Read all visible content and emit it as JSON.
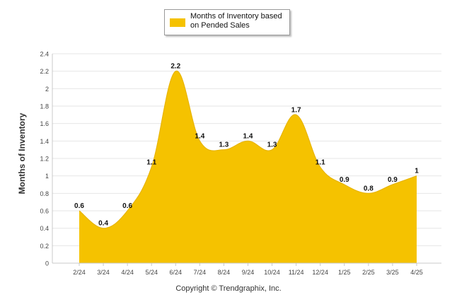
{
  "legend": {
    "label": "Months of Inventory based on Pended Sales"
  },
  "copyright": "Copyright © Trendgraphix, Inc.",
  "chart_data": {
    "type": "area",
    "categories": [
      "2/24",
      "3/24",
      "4/24",
      "5/24",
      "6/24",
      "7/24",
      "8/24",
      "9/24",
      "10/24",
      "11/24",
      "12/24",
      "1/25",
      "2/25",
      "3/25",
      "4/25"
    ],
    "series": [
      {
        "name": "Months of Inventory based on Pended Sales",
        "values": [
          0.6,
          0.4,
          0.6,
          1.1,
          2.2,
          1.4,
          1.3,
          1.4,
          1.3,
          1.7,
          1.1,
          0.9,
          0.8,
          0.9,
          1
        ],
        "labels": [
          "0.6",
          "0.4",
          "0.6",
          "1.1",
          "2.2",
          "1.4",
          "1.3",
          "1.4",
          "1.3",
          "1.7",
          "1.1",
          "0.9",
          "0.8",
          "0.9",
          "1"
        ],
        "color": "#F5C200"
      }
    ],
    "ylabel": "Months of Inventory",
    "xlabel": "",
    "ylim": [
      0,
      2.4
    ],
    "yticks": [
      "0",
      "0.2",
      "0.4",
      "0.6",
      "0.8",
      "1",
      "1.2",
      "1.4",
      "1.6",
      "1.8",
      "2",
      "2.2",
      "2.4"
    ],
    "grid": true,
    "legend_position": "top-center"
  }
}
